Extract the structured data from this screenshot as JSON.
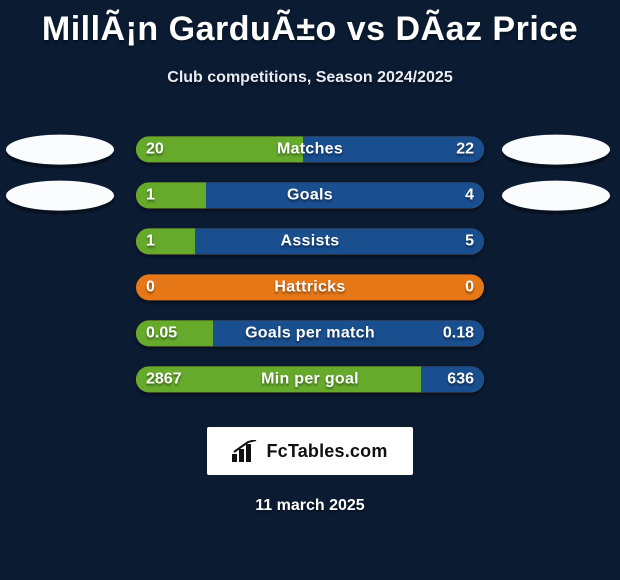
{
  "title": "MillÃ¡n GarduÃ±o vs DÃ­az Price",
  "subtitle": "Club competitions, Season 2024/2025",
  "date": "11 march 2025",
  "branding_text": "FcTables.com",
  "colors": {
    "background": "#0b1b32",
    "bar_base": "#e67817",
    "left_fill": "#66aa2c",
    "right_fill": "#194e8f",
    "badge": "#fbfcfd",
    "text": "#ffffff"
  },
  "rows": [
    {
      "label": "Matches",
      "left_val": "20",
      "right_val": "22",
      "left_pct": 48,
      "right_pct": 52,
      "show_badges": true
    },
    {
      "label": "Goals",
      "left_val": "1",
      "right_val": "4",
      "left_pct": 20,
      "right_pct": 80,
      "show_badges": true
    },
    {
      "label": "Assists",
      "left_val": "1",
      "right_val": "5",
      "left_pct": 17,
      "right_pct": 83,
      "show_badges": false
    },
    {
      "label": "Hattricks",
      "left_val": "0",
      "right_val": "0",
      "left_pct": 0,
      "right_pct": 0,
      "show_badges": false
    },
    {
      "label": "Goals per match",
      "left_val": "0.05",
      "right_val": "0.18",
      "left_pct": 22,
      "right_pct": 78,
      "show_badges": false
    },
    {
      "label": "Min per goal",
      "left_val": "2867",
      "right_val": "636",
      "left_pct": 82,
      "right_pct": 18,
      "show_badges": false
    }
  ]
}
